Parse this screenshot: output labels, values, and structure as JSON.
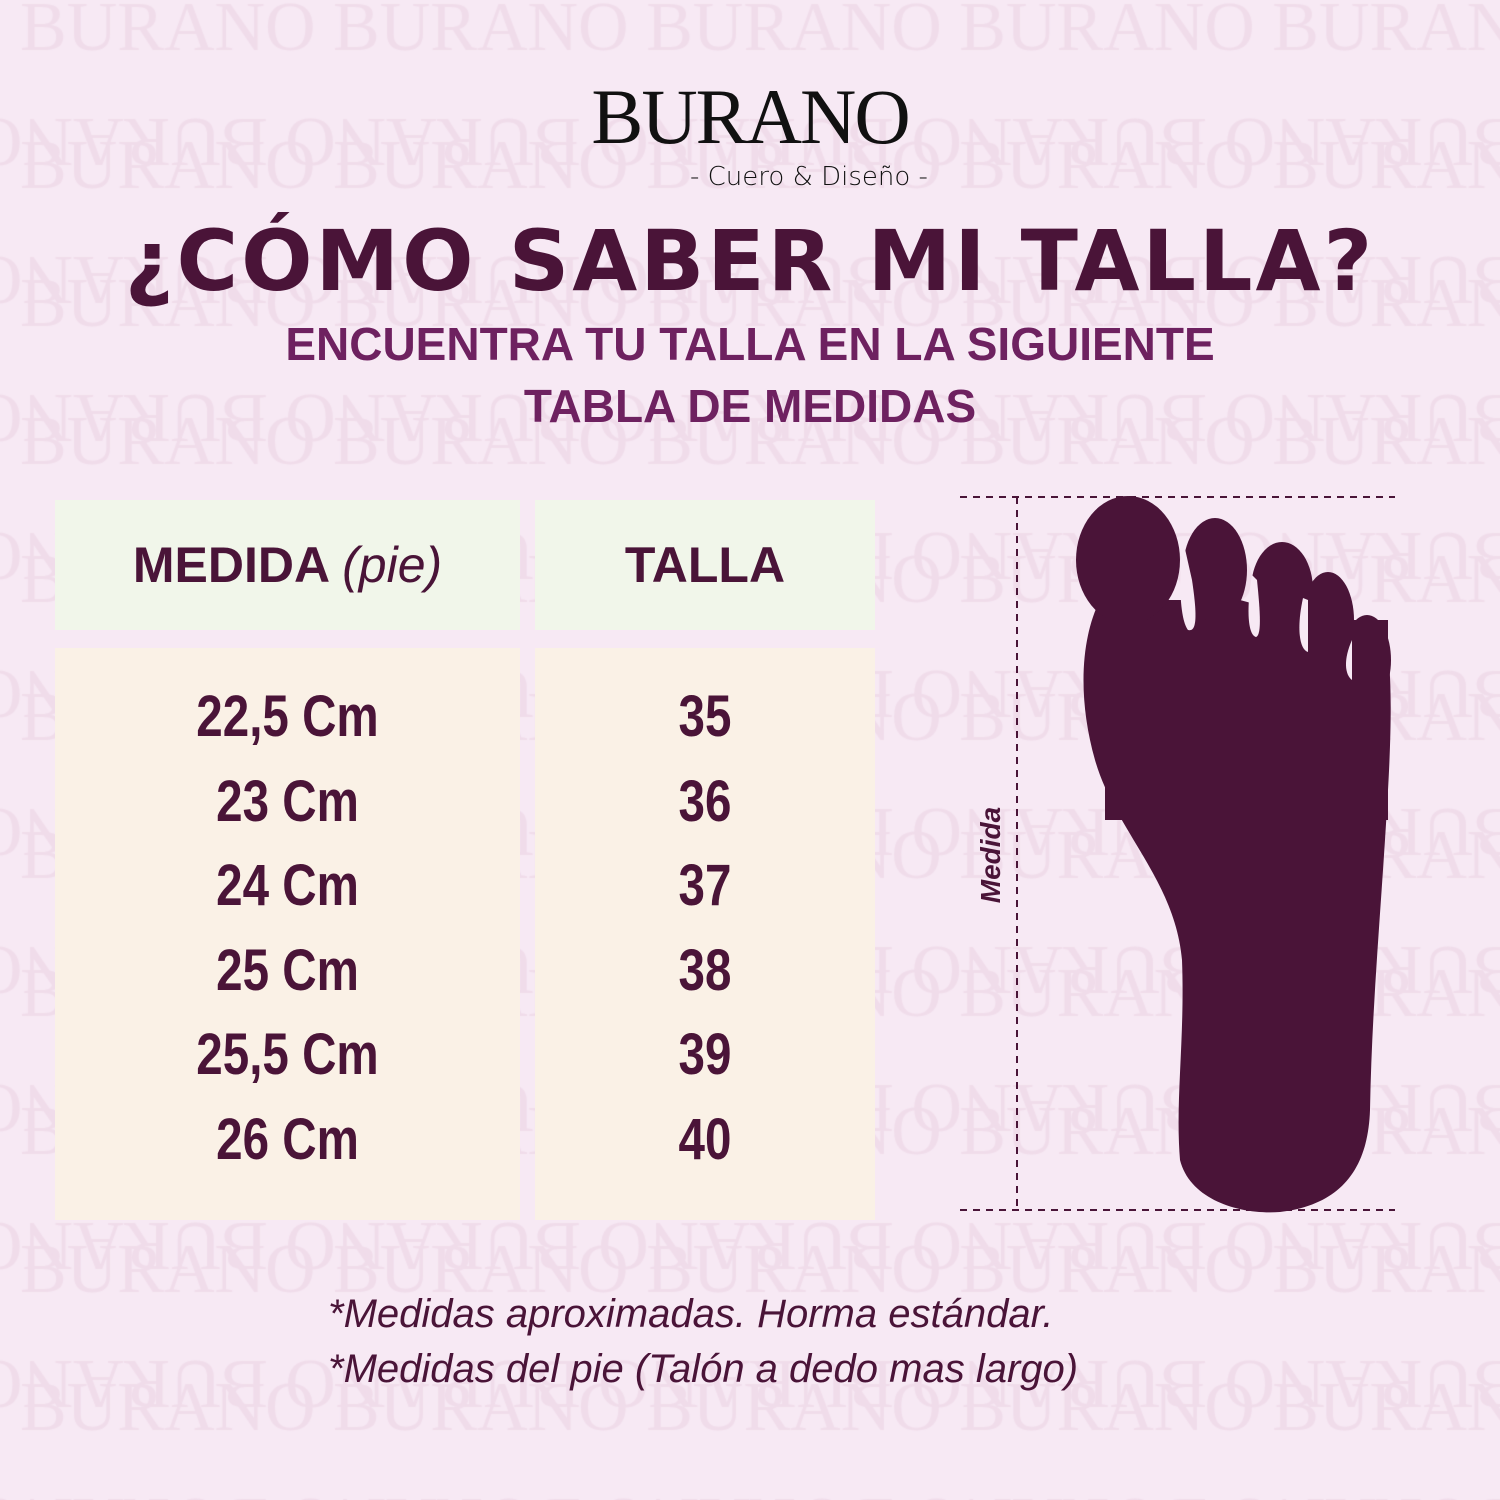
{
  "watermark": "BURANO",
  "brand": {
    "name": "BURANO",
    "tagline": "- Cuero & Diseño -"
  },
  "title": "¿CÓMO SABER MI TALLA?",
  "subtitle": [
    "ENCUENTRA TU TALLA EN LA SIGUIENTE",
    "TABLA DE MEDIDAS"
  ],
  "table": {
    "headers": {
      "medida": "MEDIDA",
      "medida_note": "(pie)",
      "talla": "TALLA"
    },
    "rows": [
      {
        "medida": "22,5 Cm",
        "talla": "35"
      },
      {
        "medida": "23 Cm",
        "talla": "36"
      },
      {
        "medida": "24 Cm",
        "talla": "37"
      },
      {
        "medida": "25 Cm",
        "talla": "38"
      },
      {
        "medida": "25,5 Cm",
        "talla": "39"
      },
      {
        "medida": "26 Cm",
        "talla": "40"
      }
    ]
  },
  "diagram": {
    "label": "Medida",
    "icon": "foot-silhouette-icon"
  },
  "notes": [
    "*Medidas aproximadas. Horma estándar.",
    "*Medidas del pie (Talón a dedo mas largo)"
  ],
  "colors": {
    "background": "#f7e9f4",
    "primary": "#4a1438",
    "accent": "#6e2160",
    "header_bg": "#f1f6ea",
    "body_bg": "#faf1e6"
  }
}
